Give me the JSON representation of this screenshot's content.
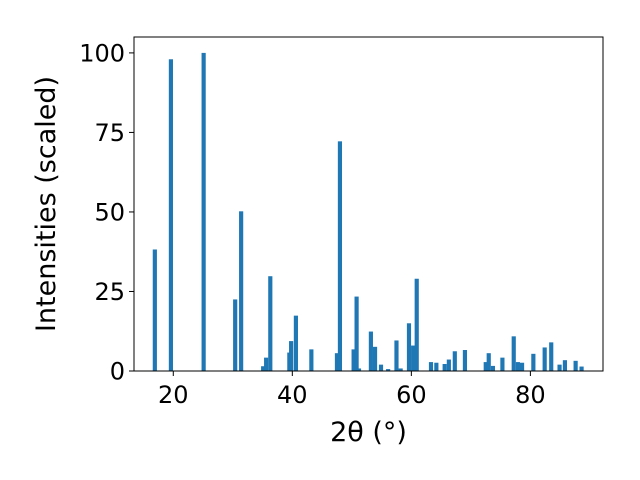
{
  "chart_data": {
    "type": "bar",
    "xlabel": "2θ (°)",
    "ylabel": "Intensities (scaled)",
    "xlim": [
      13.4,
      92.2
    ],
    "ylim": [
      0,
      105
    ],
    "x_ticks": [
      "20",
      "40",
      "60",
      "80"
    ],
    "x_tick_values": [
      20,
      40,
      60,
      80
    ],
    "y_ticks": [
      "0",
      "25",
      "50",
      "75",
      "100"
    ],
    "y_tick_values": [
      0,
      25,
      50,
      75,
      100
    ],
    "bar_color": "#1f77b4",
    "bar_width_deg": 0.7,
    "grid": false,
    "x": [
      16.9,
      19.6,
      25.1,
      30.4,
      31.4,
      35.1,
      35.6,
      36.3,
      39.5,
      39.8,
      40.6,
      43.2,
      47.5,
      48.0,
      50.3,
      50.8,
      51.2,
      53.2,
      53.9,
      54.9,
      56.1,
      57.5,
      58.2,
      59.6,
      60.3,
      60.9,
      63.3,
      64.2,
      65.6,
      66.3,
      67.3,
      69.0,
      72.5,
      73.0,
      73.7,
      75.3,
      77.2,
      77.9,
      78.6,
      80.5,
      82.4,
      83.5,
      84.9,
      85.8,
      87.6,
      88.6
    ],
    "y": [
      38.2,
      98.0,
      100.0,
      22.5,
      50.2,
      1.5,
      4.2,
      29.8,
      5.8,
      9.4,
      17.4,
      6.8,
      5.6,
      72.2,
      6.8,
      23.4,
      0.8,
      12.4,
      7.6,
      2.0,
      0.6,
      9.6,
      0.8,
      15.0,
      8.0,
      29.0,
      2.8,
      2.6,
      2.2,
      3.6,
      6.2,
      6.6,
      2.8,
      5.6,
      1.6,
      4.2,
      10.9,
      2.8,
      2.6,
      5.4,
      7.4,
      9.0,
      2.0,
      3.4,
      3.2,
      1.4
    ]
  }
}
